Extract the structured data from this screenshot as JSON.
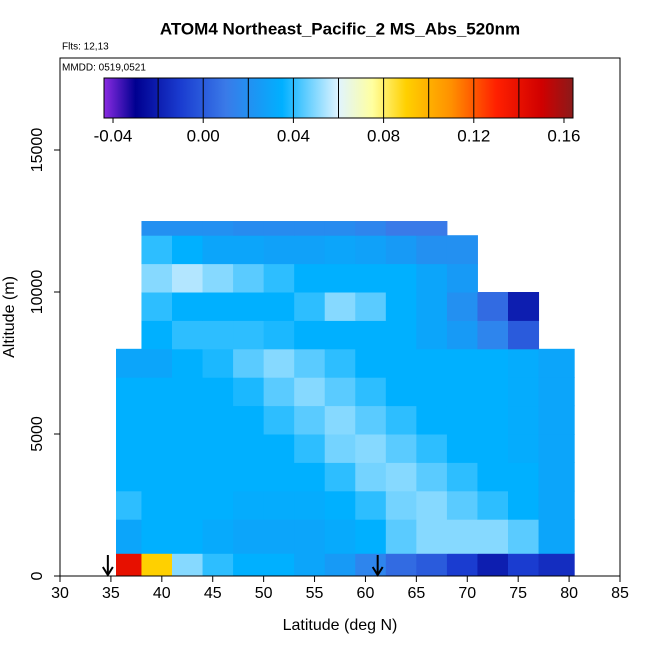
{
  "chart_data": {
    "type": "heatmap",
    "title": "ATOM4 Northeast_Pacific_2 MS_Abs_520nm",
    "annotations": [
      "Flts: 12,13",
      "MMDD: 0519,0521"
    ],
    "x_label": "Latitude (deg N)",
    "y_label": "Altitude (m)",
    "xlim": [
      30,
      85
    ],
    "xticks": [
      30,
      35,
      40,
      45,
      50,
      55,
      60,
      65,
      70,
      75,
      80,
      85
    ],
    "ylim": [
      0,
      18240
    ],
    "yticks": [
      0,
      5000,
      10000,
      15000
    ],
    "x_edges": [
      35.5,
      38,
      41,
      44,
      47,
      50,
      53,
      56,
      59,
      62,
      65,
      68,
      71,
      74,
      77,
      80.5
    ],
    "y_edges": [
      0,
      800,
      2000,
      3000,
      4000,
      5000,
      6000,
      7000,
      8000,
      9000,
      10000,
      11000,
      12000,
      12500
    ],
    "values": [
      [
        0.14,
        0.09,
        0.05,
        0.04,
        0.035,
        0.035,
        0.03,
        0.025,
        0.015,
        0.005,
        0.0,
        -0.01,
        -0.02,
        -0.01,
        -0.015
      ],
      [
        0.03,
        0.035,
        0.035,
        0.032,
        0.03,
        0.03,
        0.03,
        0.032,
        0.035,
        0.045,
        0.05,
        0.05,
        0.05,
        0.045,
        0.03
      ],
      [
        0.04,
        0.035,
        0.035,
        0.035,
        0.033,
        0.033,
        0.033,
        0.035,
        0.04,
        0.048,
        0.05,
        0.045,
        0.04,
        0.035,
        0.03
      ],
      [
        0.035,
        0.035,
        0.035,
        0.035,
        0.035,
        0.035,
        0.035,
        0.04,
        0.048,
        0.05,
        0.045,
        0.04,
        0.035,
        0.035,
        0.03
      ],
      [
        0.035,
        0.035,
        0.035,
        0.035,
        0.035,
        0.035,
        0.04,
        0.048,
        0.05,
        0.045,
        0.04,
        0.035,
        0.035,
        0.033,
        0.03
      ],
      [
        0.035,
        0.035,
        0.035,
        0.035,
        0.035,
        0.04,
        0.045,
        0.05,
        0.045,
        0.04,
        0.035,
        0.035,
        0.035,
        0.033,
        0.03
      ],
      [
        0.035,
        0.035,
        0.035,
        0.035,
        0.038,
        0.045,
        0.05,
        0.045,
        0.04,
        0.035,
        0.035,
        0.035,
        0.035,
        0.033,
        0.03
      ],
      [
        0.03,
        0.03,
        0.035,
        0.038,
        0.045,
        0.05,
        0.045,
        0.04,
        0.035,
        0.035,
        0.035,
        0.035,
        0.035,
        0.033,
        0.03
      ],
      [
        null,
        0.035,
        0.04,
        0.04,
        0.04,
        0.038,
        0.035,
        0.035,
        0.035,
        0.035,
        0.03,
        0.025,
        0.015,
        0.0,
        null
      ],
      [
        null,
        0.04,
        0.035,
        0.035,
        0.035,
        0.035,
        0.04,
        0.05,
        0.045,
        0.035,
        0.03,
        0.02,
        0.005,
        -0.02,
        null
      ],
      [
        null,
        0.05,
        0.055,
        0.05,
        0.045,
        0.04,
        0.035,
        0.035,
        0.035,
        0.035,
        0.03,
        0.025,
        null,
        null,
        null
      ],
      [
        null,
        0.04,
        0.035,
        0.03,
        0.03,
        0.028,
        0.028,
        0.03,
        0.028,
        0.025,
        0.02,
        0.02,
        null,
        null,
        null
      ],
      [
        null,
        0.02,
        0.02,
        0.02,
        0.018,
        0.018,
        0.018,
        0.018,
        0.015,
        0.01,
        0.01,
        null,
        null,
        null,
        null
      ]
    ],
    "colorscale": [
      [
        -0.045,
        "#8a2be2"
      ],
      [
        -0.03,
        "#000090"
      ],
      [
        -0.01,
        "#1a3cd0"
      ],
      [
        0.01,
        "#3a7ae8"
      ],
      [
        0.035,
        "#00b0ff"
      ],
      [
        0.06,
        "#e0f4ff"
      ],
      [
        0.075,
        "#ffffa0"
      ],
      [
        0.09,
        "#ffd000"
      ],
      [
        0.11,
        "#ff9000"
      ],
      [
        0.13,
        "#ff2000"
      ],
      [
        0.15,
        "#d00000"
      ],
      [
        0.165,
        "#8b1a1a"
      ]
    ],
    "cbar_lim": [
      -0.044,
      0.164
    ],
    "cbar_ticks": [
      {
        "value": -0.04,
        "label": "-0.04"
      },
      {
        "value": 0,
        "label": "0.00"
      },
      {
        "value": 0.04,
        "label": "0.04"
      },
      {
        "value": 0.08,
        "label": "0.08"
      },
      {
        "value": 0.12,
        "label": "0.12"
      },
      {
        "value": 0.16,
        "label": "0.16"
      }
    ],
    "cbar_breaks": [
      -0.02,
      0,
      0.02,
      0.04,
      0.06,
      0.08,
      0.1,
      0.12,
      0.14
    ],
    "arrows": [
      34.7,
      61.2
    ]
  }
}
